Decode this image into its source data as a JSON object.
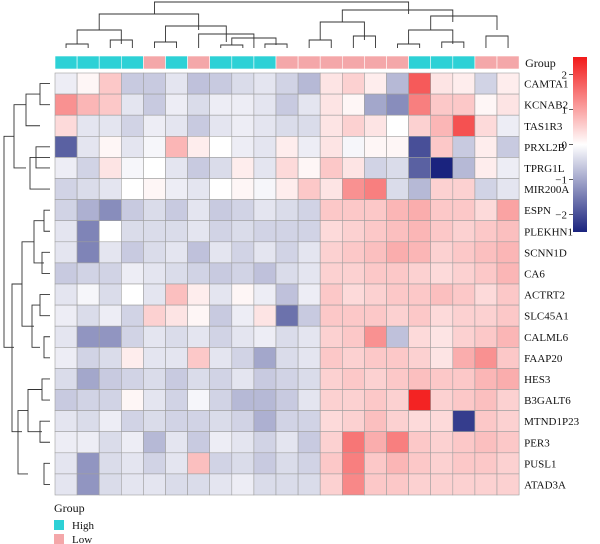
{
  "chart_data": {
    "type": "heatmap",
    "title": "",
    "annotation_label": "Group",
    "annotation_colors": {
      "High": "#2dd1d6",
      "Low": "#f4a7a9"
    },
    "column_groups": [
      "High",
      "High",
      "High",
      "High",
      "Low",
      "High",
      "Low",
      "High",
      "High",
      "High",
      "Low",
      "Low",
      "Low",
      "Low",
      "Low",
      "Low",
      "High",
      "High",
      "High",
      "Low",
      "Low"
    ],
    "rows": [
      "CAMTA1",
      "KCNAB2",
      "TAS1R3",
      "PRXL2B",
      "TPRG1L",
      "MIR200A",
      "ESPN",
      "PLEKHN1",
      "SCNN1D",
      "CA6",
      "ACTRT2",
      "SLC45A1",
      "CALML6",
      "FAAP20",
      "HES3",
      "B3GALT6",
      "MTND1P23",
      "PER3",
      "PUSL1",
      "ATAD3A"
    ],
    "values": [
      [
        -0.2,
        0.1,
        0.6,
        -0.6,
        -0.6,
        -0.3,
        -0.7,
        -0.6,
        -0.4,
        -0.3,
        -0.5,
        -0.8,
        0.3,
        0.5,
        0.2,
        -0.8,
        1.8,
        0.3,
        0.2,
        -0.5,
        0.2
      ],
      [
        1.2,
        0.8,
        0.6,
        -0.3,
        -0.6,
        -0.2,
        -0.4,
        -0.2,
        -0.2,
        -0.3,
        -0.6,
        -0.3,
        0.3,
        0.1,
        -1.0,
        -1.3,
        1.4,
        0.6,
        0.6,
        0.1,
        0.3
      ],
      [
        0.4,
        -0.3,
        -0.3,
        -0.5,
        -0.2,
        -0.3,
        -0.6,
        -0.3,
        -0.2,
        -0.3,
        -0.4,
        -0.4,
        0.3,
        0.5,
        0.3,
        0.0,
        0.5,
        0.8,
        1.9,
        0.4,
        -0.2
      ],
      [
        -1.8,
        -0.3,
        0.1,
        -0.3,
        -0.1,
        0.8,
        0.2,
        0.0,
        -0.2,
        -0.3,
        0.2,
        -0.2,
        0.3,
        -0.1,
        0.1,
        0.1,
        -2.0,
        0.6,
        -0.6,
        0.2,
        -0.6
      ],
      [
        -0.2,
        -0.5,
        0.3,
        -0.1,
        0.0,
        -0.3,
        -0.6,
        -0.4,
        0.2,
        -0.3,
        0.4,
        0.1,
        0.6,
        0.3,
        -0.5,
        -0.4,
        -1.8,
        -2.6,
        -0.8,
        0.2,
        -0.2
      ],
      [
        -0.5,
        -0.4,
        -0.3,
        0.0,
        0.1,
        -0.2,
        -0.3,
        0.0,
        0.1,
        -0.1,
        0.2,
        0.6,
        0.3,
        1.2,
        1.4,
        -0.4,
        -0.8,
        0.5,
        0.5,
        -0.5,
        -0.3
      ],
      [
        -0.5,
        -0.9,
        -1.3,
        -0.6,
        -0.4,
        -0.6,
        -0.3,
        -0.6,
        -0.5,
        -0.3,
        -0.4,
        -0.5,
        0.6,
        0.6,
        0.6,
        0.8,
        0.9,
        0.6,
        0.6,
        0.4,
        1.0
      ],
      [
        -0.3,
        -1.4,
        0.0,
        -0.4,
        -0.4,
        -0.4,
        -0.3,
        -0.5,
        -0.4,
        -0.5,
        -0.5,
        -0.5,
        0.4,
        0.5,
        0.6,
        0.7,
        0.8,
        0.6,
        0.5,
        0.6,
        0.7
      ],
      [
        -0.3,
        -1.4,
        -0.3,
        -0.6,
        -0.4,
        -0.3,
        -0.7,
        -0.3,
        -0.5,
        -0.3,
        -0.5,
        -0.3,
        0.5,
        0.6,
        0.7,
        0.9,
        0.8,
        0.5,
        0.6,
        0.7,
        0.8
      ],
      [
        -0.6,
        -0.5,
        -0.5,
        -0.2,
        -0.3,
        -0.4,
        -0.5,
        -0.6,
        -0.5,
        -0.7,
        -0.4,
        -0.3,
        0.5,
        0.5,
        0.6,
        0.6,
        0.5,
        0.4,
        0.5,
        0.6,
        0.8
      ],
      [
        -0.3,
        -0.1,
        -0.4,
        0.0,
        -0.3,
        0.7,
        0.2,
        -0.3,
        0.1,
        -0.2,
        -0.7,
        -0.2,
        0.6,
        0.4,
        0.5,
        0.6,
        0.6,
        0.7,
        0.6,
        0.4,
        0.6
      ],
      [
        -0.2,
        -0.4,
        -0.2,
        -0.5,
        0.5,
        0.3,
        0.1,
        -0.6,
        -0.2,
        0.3,
        -1.6,
        -0.6,
        0.6,
        0.6,
        0.6,
        0.5,
        0.6,
        0.4,
        0.5,
        0.5,
        0.6
      ],
      [
        -0.3,
        -1.2,
        -1.2,
        -0.5,
        -0.3,
        -0.4,
        -0.3,
        -0.5,
        -0.3,
        -0.2,
        -0.4,
        -0.3,
        0.5,
        0.6,
        1.2,
        -0.7,
        0.4,
        0.3,
        0.5,
        0.6,
        0.8
      ],
      [
        -0.2,
        -0.5,
        -0.4,
        0.2,
        -0.3,
        -0.3,
        0.6,
        -0.3,
        -0.5,
        -1.0,
        -0.4,
        -0.3,
        0.6,
        0.5,
        0.6,
        0.6,
        0.5,
        0.3,
        0.9,
        1.2,
        0.6
      ],
      [
        -0.4,
        -1.0,
        -0.6,
        -0.5,
        -0.4,
        -0.6,
        -0.4,
        -0.5,
        -0.3,
        -0.6,
        -0.5,
        -0.4,
        0.5,
        0.6,
        0.5,
        0.6,
        0.7,
        0.6,
        0.6,
        0.8,
        0.9
      ],
      [
        -0.6,
        -0.5,
        -0.5,
        0.1,
        -0.3,
        -0.5,
        -0.1,
        -0.5,
        -0.8,
        -0.8,
        -0.6,
        -0.3,
        0.5,
        0.5,
        0.6,
        0.5,
        2.4,
        0.5,
        0.6,
        0.7,
        0.5
      ],
      [
        -0.3,
        -0.4,
        -0.2,
        -0.5,
        -0.4,
        -0.5,
        -0.5,
        -0.4,
        -0.5,
        -0.9,
        -0.5,
        -0.5,
        0.4,
        0.5,
        0.7,
        0.5,
        0.4,
        0.4,
        -2.2,
        0.6,
        0.5
      ],
      [
        -0.2,
        -0.2,
        -0.4,
        -0.2,
        -0.8,
        -0.3,
        -0.6,
        -0.2,
        -0.3,
        -0.5,
        -0.3,
        -0.6,
        0.5,
        1.5,
        0.9,
        1.4,
        0.6,
        0.5,
        0.6,
        0.7,
        0.6
      ],
      [
        -0.3,
        -1.2,
        -0.4,
        -0.3,
        -0.5,
        -0.3,
        0.7,
        -0.5,
        -0.4,
        -0.6,
        -0.4,
        -0.5,
        0.6,
        1.4,
        0.6,
        0.8,
        0.6,
        0.5,
        0.6,
        0.6,
        0.5
      ],
      [
        -0.3,
        -1.2,
        -0.4,
        -0.3,
        -0.3,
        -0.4,
        -0.4,
        -0.3,
        -0.2,
        -0.4,
        -0.4,
        -0.4,
        0.5,
        1.3,
        0.6,
        0.6,
        0.5,
        0.5,
        0.5,
        0.5,
        0.5
      ]
    ],
    "color_scale": {
      "min": -2.5,
      "max": 2.5,
      "low": "#1a237e",
      "mid": "#ffffff",
      "high": "#f21a1a",
      "ticks": [
        2,
        1,
        0,
        -1,
        -2
      ]
    },
    "legend": {
      "title": "Group",
      "entries": [
        "High",
        "Low"
      ]
    }
  }
}
